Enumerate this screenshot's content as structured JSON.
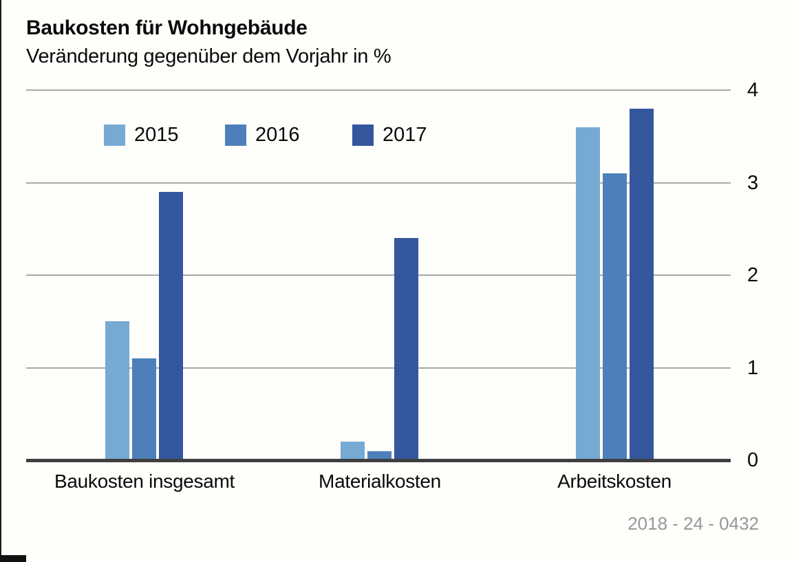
{
  "header": {
    "title": "Baukosten für Wohngebäude",
    "subtitle": "Veränderung gegenüber dem Vorjahr in %"
  },
  "footer": {
    "note": "2018 - 24 - 0432"
  },
  "colors": {
    "bar_2015": "#76AAD3",
    "bar_2016": "#4D80BA",
    "bar_2017": "#34569D",
    "gridline": "#A9A9A9",
    "axis_line": "#3F3F3F",
    "text": "#0A0A0A",
    "footer_text": "#97979D",
    "background": "#FEFEFB"
  },
  "chart_data": {
    "type": "bar",
    "title": "Baukosten für Wohngebäude",
    "subtitle": "Veränderung gegenüber dem Vorjahr in %",
    "categories": [
      "Baukosten insgesamt",
      "Materialkosten",
      "Arbeitskosten"
    ],
    "series": [
      {
        "name": "2015",
        "color": "#76AAD3",
        "values": [
          1.5,
          0.2,
          3.6
        ]
      },
      {
        "name": "2016",
        "color": "#4D80BA",
        "values": [
          1.1,
          0.1,
          3.1
        ]
      },
      {
        "name": "2017",
        "color": "#34569D",
        "values": [
          2.9,
          2.4,
          3.8
        ]
      }
    ],
    "xlabel": "",
    "ylabel": "",
    "ylim": [
      0,
      4
    ],
    "yticks": [
      0,
      1,
      2,
      3,
      4
    ],
    "grid": true,
    "legend_position": "top-left-inside"
  }
}
